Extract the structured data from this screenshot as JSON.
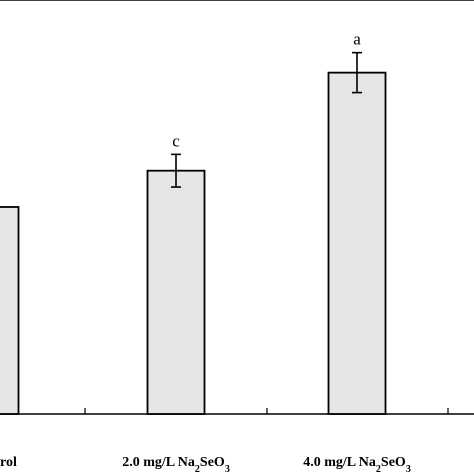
{
  "chart_data": {
    "type": "bar",
    "categories": [
      {
        "main": "rol"
      },
      {
        "main": "2.0 mg/L Na",
        "sub1": "2",
        "mid": "SeO",
        "sub2": "3"
      },
      {
        "main": "4.0 mg/L Na",
        "sub1": "2",
        "mid": "SeO",
        "sub2": "3"
      }
    ],
    "values": [
      57,
      67,
      94
    ],
    "errors": [
      0,
      4.5,
      5.5
    ],
    "significance": [
      "",
      "c",
      "a"
    ],
    "bar_color": "#e6e6e6",
    "edge_color": "#000000",
    "ylim": [
      0,
      114
    ],
    "xlabel": "",
    "ylabel": "",
    "title": "",
    "grid": false,
    "legend": "none"
  }
}
